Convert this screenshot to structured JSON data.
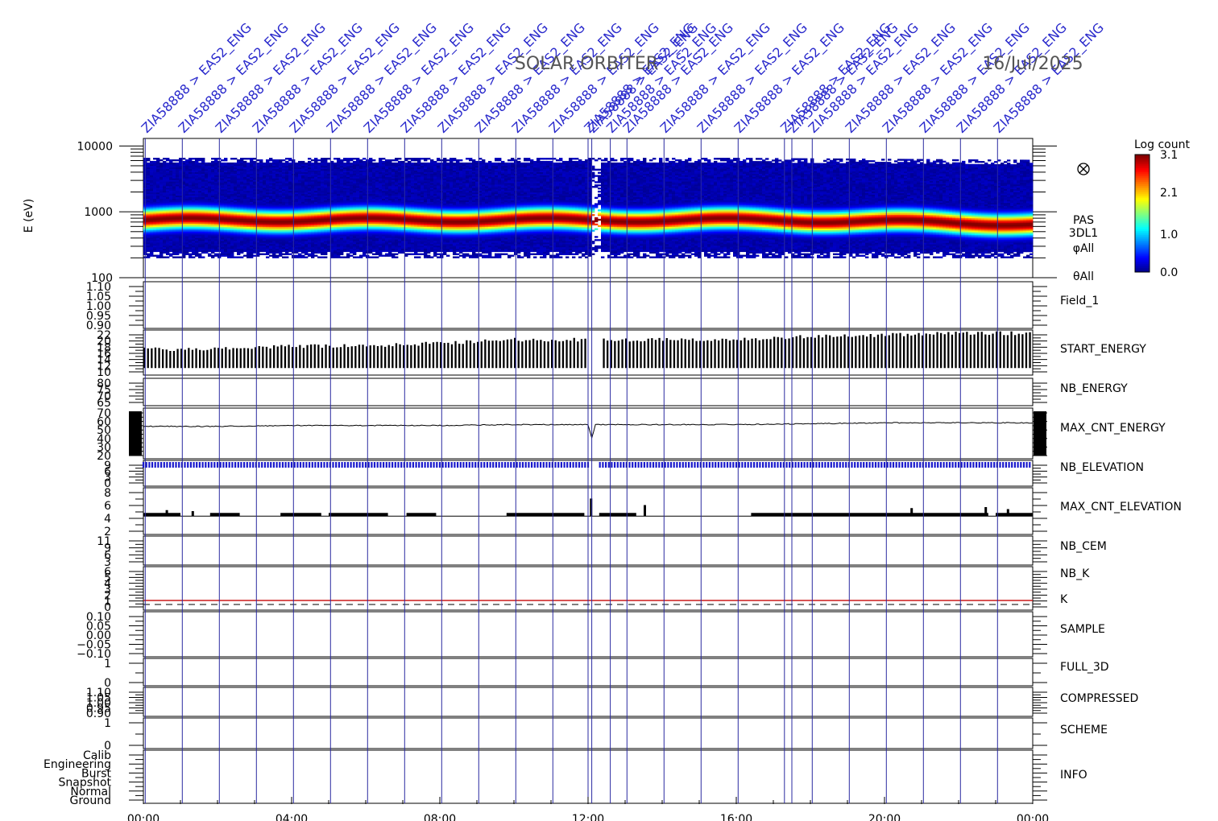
{
  "header": {
    "mission": "SOLAR ORBITER",
    "date": "16/Jul/2025"
  },
  "chart_data": {
    "type": "heatmap",
    "x_axis": {
      "ticks": [
        "00:00",
        "04:00",
        "08:00",
        "12:00",
        "16:00",
        "20:00",
        "00:00"
      ],
      "range_hours": [
        0,
        24
      ]
    },
    "spectrogram": {
      "ylabel": "E (eV)",
      "y_scale": "log",
      "ylim": [
        100,
        13000
      ],
      "yticks": [
        "10000",
        "1000",
        "100"
      ],
      "side_labels": [
        "PAS",
        "3DL1",
        "φAll",
        "θAll"
      ],
      "side_icon": "circle-cross-icon",
      "colorbar": {
        "label": "Log count",
        "ticks": [
          "3.1",
          "2.1",
          "1.0",
          "0.0"
        ],
        "range": [
          0.0,
          3.1
        ]
      }
    },
    "annotations": {
      "label_text": "ZIA58888 > EAS2_ENG",
      "times_hours": [
        0.05,
        1.05,
        2.05,
        3.05,
        4.05,
        5.05,
        6.05,
        7.05,
        8.05,
        9.05,
        10.05,
        11.05,
        12.0,
        12.1,
        12.6,
        13.05,
        14.05,
        15.05,
        16.05,
        17.3,
        17.5,
        18.05,
        19.05,
        20.05,
        21.05,
        22.05,
        23.05
      ]
    },
    "panels": [
      {
        "label": "Field_1",
        "color": "blue",
        "yticks": [
          "1.10",
          "1.05",
          "1.00",
          "0.95",
          "0.90"
        ],
        "kind": "empty"
      },
      {
        "label": "START_ENERGY",
        "color": "black",
        "yticks": [
          "22",
          "20",
          "18",
          "16",
          "14",
          "12",
          "10"
        ],
        "kind": "bars",
        "ylim": [
          10,
          22
        ],
        "points": [
          [
            0,
            17
          ],
          [
            2,
            17
          ],
          [
            4,
            18
          ],
          [
            6,
            18
          ],
          [
            8,
            19
          ],
          [
            10,
            20
          ],
          [
            12,
            20
          ],
          [
            13,
            20
          ],
          [
            16,
            20
          ],
          [
            18,
            21
          ],
          [
            20,
            21.5
          ],
          [
            22,
            22
          ],
          [
            24,
            22
          ]
        ]
      },
      {
        "label": "NB_ENERGY",
        "color": "blue",
        "yticks": [
          "80",
          "75",
          "70",
          "65"
        ],
        "kind": "empty"
      },
      {
        "label": "MAX_CNT_ENERGY",
        "color": "black",
        "yticks": [
          "70",
          "60",
          "50",
          "40",
          "30",
          "20"
        ],
        "kind": "line",
        "ylim": [
          20,
          70
        ],
        "points": [
          [
            0,
            53
          ],
          [
            2,
            53
          ],
          [
            4,
            54
          ],
          [
            6,
            54
          ],
          [
            8,
            54
          ],
          [
            10,
            55
          ],
          [
            12,
            55
          ],
          [
            12.1,
            40
          ],
          [
            12.2,
            55
          ],
          [
            16,
            55
          ],
          [
            18,
            56
          ],
          [
            20,
            57
          ],
          [
            22,
            57
          ],
          [
            24,
            57
          ]
        ]
      },
      {
        "label": "NB_ELEVATION",
        "color": "blue",
        "yticks": [
          "9",
          "6",
          "3",
          "0"
        ],
        "kind": "dense",
        "value": 8
      },
      {
        "label": "MAX_CNT_ELEVATION",
        "color": "black",
        "yticks": [
          "8",
          "6",
          "4",
          "2"
        ],
        "kind": "steps",
        "ylim": [
          1,
          9
        ],
        "value": 4
      },
      {
        "label": "NB_CEM",
        "color": "blue",
        "yticks": [
          "11",
          "9",
          "6",
          "3"
        ],
        "kind": "empty"
      },
      {
        "label": "NB_K",
        "label2": "K",
        "color": "red",
        "color2": "blue",
        "yticks": [
          "6",
          "5",
          "4",
          "3",
          "2",
          "1",
          "0"
        ],
        "kind": "k"
      },
      {
        "label": "SAMPLE",
        "color": "blue",
        "yticks": [
          "0.10",
          "0.05",
          "0.00",
          "−0.05",
          "−0.10"
        ],
        "kind": "empty"
      },
      {
        "label": "FULL_3D",
        "color": "blue",
        "yticks": [
          "1",
          "0"
        ],
        "kind": "empty"
      },
      {
        "label": "COMPRESSED",
        "color": "black",
        "yticks": [
          "1.10",
          "1.05",
          "1.00",
          "0.95",
          "0.90"
        ],
        "kind": "empty"
      },
      {
        "label": "SCHEME",
        "color": "black",
        "yticks": [
          "1",
          "0"
        ],
        "kind": "empty"
      },
      {
        "label": "INFO",
        "color": "black",
        "yticks": [
          "Calib",
          "Engineering",
          "Burst",
          "Snapshot",
          "Normal",
          "Ground"
        ],
        "kind": "empty"
      }
    ]
  }
}
